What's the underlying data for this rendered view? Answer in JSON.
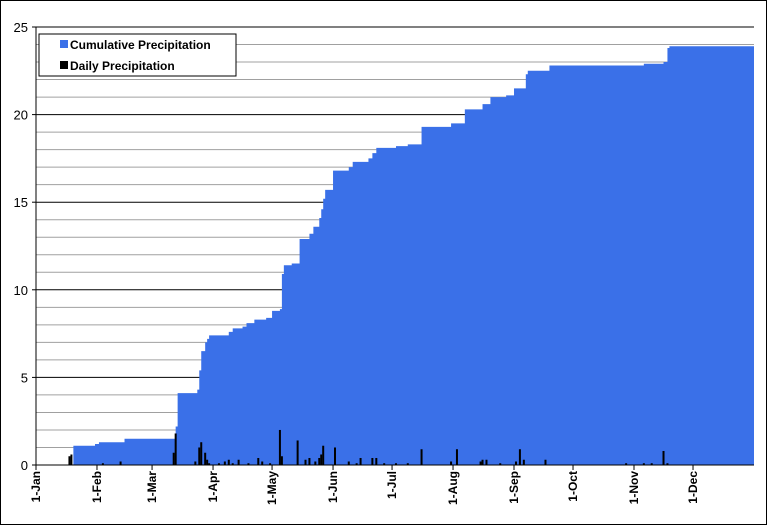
{
  "chart_data": {
    "type": "area",
    "title": "",
    "xlabel": "",
    "ylabel": "",
    "ylim": [
      0,
      25
    ],
    "xlim_day": [
      1,
      366
    ],
    "y_ticks": [
      0,
      5,
      10,
      15,
      20,
      25
    ],
    "x_ticks": [
      {
        "label": "1-Jan",
        "day": 1
      },
      {
        "label": "1-Feb",
        "day": 32
      },
      {
        "label": "1-Mar",
        "day": 60
      },
      {
        "label": "1-Apr",
        "day": 91
      },
      {
        "label": "1-May",
        "day": 121
      },
      {
        "label": "1-Jun",
        "day": 152
      },
      {
        "label": "1-Jul",
        "day": 182
      },
      {
        "label": "1-Aug",
        "day": 213
      },
      {
        "label": "1-Sep",
        "day": 244
      },
      {
        "label": "1-Oct",
        "day": 274
      },
      {
        "label": "1-Nov",
        "day": 305
      },
      {
        "label": "1-Dec",
        "day": 335
      }
    ],
    "grid": "horizontal",
    "legend_position": "top-left",
    "colors": {
      "cumulative": "#3a70e8",
      "daily": "#000000",
      "grid": "#000000",
      "minor_grid": "#a0a0a0"
    },
    "series": [
      {
        "name": "Cumulative Precipitation",
        "kind": "area",
        "points": [
          [
            1,
            0
          ],
          [
            19,
            0
          ],
          [
            20,
            1.1
          ],
          [
            30,
            1.1
          ],
          [
            31,
            1.2
          ],
          [
            33,
            1.3
          ],
          [
            45,
            1.3
          ],
          [
            46,
            1.5
          ],
          [
            71,
            1.5
          ],
          [
            72,
            2.2
          ],
          [
            73,
            4.1
          ],
          [
            82,
            4.1
          ],
          [
            83,
            4.3
          ],
          [
            84,
            5.4
          ],
          [
            85,
            6.5
          ],
          [
            87,
            7.0
          ],
          [
            88,
            7.2
          ],
          [
            89,
            7.4
          ],
          [
            98,
            7.4
          ],
          [
            99,
            7.6
          ],
          [
            101,
            7.8
          ],
          [
            106,
            7.9
          ],
          [
            108,
            8.1
          ],
          [
            112,
            8.3
          ],
          [
            118,
            8.4
          ],
          [
            121,
            8.8
          ],
          [
            125,
            8.9
          ],
          [
            126,
            10.9
          ],
          [
            127,
            11.4
          ],
          [
            131,
            11.5
          ],
          [
            135,
            12.9
          ],
          [
            140,
            13.2
          ],
          [
            142,
            13.6
          ],
          [
            145,
            14.1
          ],
          [
            146,
            14.6
          ],
          [
            147,
            15.2
          ],
          [
            148,
            15.7
          ],
          [
            152,
            16.8
          ],
          [
            160,
            17.0
          ],
          [
            162,
            17.3
          ],
          [
            170,
            17.5
          ],
          [
            172,
            17.8
          ],
          [
            174,
            18.1
          ],
          [
            184,
            18.2
          ],
          [
            190,
            18.3
          ],
          [
            197,
            19.3
          ],
          [
            212,
            19.5
          ],
          [
            219,
            20.3
          ],
          [
            228,
            20.6
          ],
          [
            232,
            21.0
          ],
          [
            240,
            21.1
          ],
          [
            244,
            21.5
          ],
          [
            250,
            22.3
          ],
          [
            251,
            22.5
          ],
          [
            262,
            22.8
          ],
          [
            301,
            22.8
          ],
          [
            310,
            22.9
          ],
          [
            320,
            23.0
          ],
          [
            322,
            23.8
          ],
          [
            323,
            23.9
          ],
          [
            366,
            23.9
          ]
        ]
      },
      {
        "name": "Daily Precipitation",
        "kind": "bar",
        "points": [
          [
            18,
            0.5
          ],
          [
            19,
            0.6
          ],
          [
            35,
            0.1
          ],
          [
            44,
            0.2
          ],
          [
            71,
            0.7
          ],
          [
            72,
            1.8
          ],
          [
            82,
            0.2
          ],
          [
            84,
            1.0
          ],
          [
            85,
            1.3
          ],
          [
            87,
            0.7
          ],
          [
            88,
            0.3
          ],
          [
            89,
            0.1
          ],
          [
            94,
            0.1
          ],
          [
            97,
            0.2
          ],
          [
            99,
            0.3
          ],
          [
            101,
            0.1
          ],
          [
            104,
            0.3
          ],
          [
            109,
            0.1
          ],
          [
            114,
            0.4
          ],
          [
            116,
            0.2
          ],
          [
            120,
            0.1
          ],
          [
            125,
            2.0
          ],
          [
            126,
            0.5
          ],
          [
            134,
            1.4
          ],
          [
            138,
            0.3
          ],
          [
            140,
            0.4
          ],
          [
            143,
            0.2
          ],
          [
            145,
            0.4
          ],
          [
            146,
            0.6
          ],
          [
            147,
            1.1
          ],
          [
            153,
            1.0
          ],
          [
            160,
            0.2
          ],
          [
            164,
            0.1
          ],
          [
            166,
            0.4
          ],
          [
            172,
            0.4
          ],
          [
            174,
            0.4
          ],
          [
            178,
            0.1
          ],
          [
            184,
            0.1
          ],
          [
            190,
            0.1
          ],
          [
            197,
            0.9
          ],
          [
            212,
            0.2
          ],
          [
            215,
            0.9
          ],
          [
            227,
            0.2
          ],
          [
            228,
            0.3
          ],
          [
            230,
            0.3
          ],
          [
            237,
            0.1
          ],
          [
            245,
            0.2
          ],
          [
            247,
            0.9
          ],
          [
            249,
            0.3
          ],
          [
            260,
            0.3
          ],
          [
            301,
            0.1
          ],
          [
            310,
            0.1
          ],
          [
            314,
            0.1
          ],
          [
            320,
            0.8
          ],
          [
            322,
            0.1
          ]
        ]
      }
    ]
  }
}
